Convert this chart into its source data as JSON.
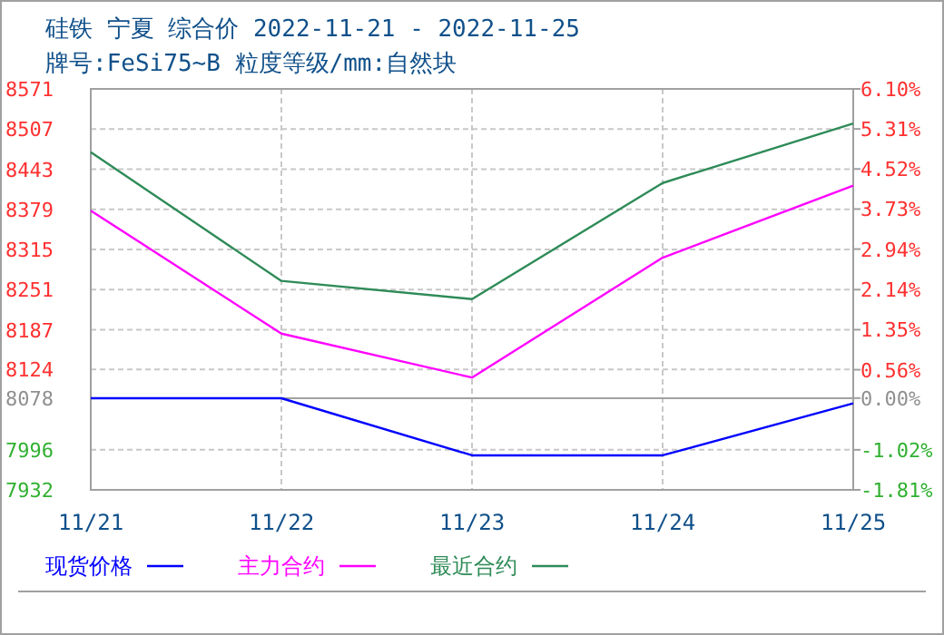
{
  "chart_data": {
    "type": "line",
    "title": "硅铁 宁夏 综合价 2022-11-21 - 2022-11-25",
    "subtitle": "牌号:FeSi75~B 粒度等级/mm:自然块",
    "categories": [
      "11/21",
      "11/22",
      "11/23",
      "11/24",
      "11/25"
    ],
    "series": [
      {
        "name": "现货价格",
        "color": "#0000ff",
        "values": [
          8078,
          8078,
          7987,
          7987,
          8070
        ]
      },
      {
        "name": "主力合约",
        "color": "#ff00ff",
        "values": [
          8377,
          8181,
          8111,
          8302,
          8417
        ]
      },
      {
        "name": "最近合约",
        "color": "#2e8b57",
        "values": [
          8470,
          8265,
          8236,
          8421,
          8516
        ]
      }
    ],
    "ylim": [
      7932,
      8571
    ],
    "yticks": [
      7932,
      7996,
      8078,
      8124,
      8187,
      8251,
      8315,
      8379,
      8443,
      8507,
      8571
    ],
    "y2lim": [
      -1.81,
      6.1
    ],
    "y2ticks": [
      {
        "value": -1.81,
        "label": "-1.81%"
      },
      {
        "value": -1.02,
        "label": "-1.02%"
      },
      {
        "value": 0,
        "label": "0.00%"
      },
      {
        "value": 0.56,
        "label": "0.56%"
      },
      {
        "value": 1.35,
        "label": "1.35%"
      },
      {
        "value": 2.14,
        "label": "2.14%"
      },
      {
        "value": 2.94,
        "label": "2.94%"
      },
      {
        "value": 3.73,
        "label": "3.73%"
      },
      {
        "value": 4.52,
        "label": "4.52%"
      },
      {
        "value": 5.31,
        "label": "5.31%"
      },
      {
        "value": 6.1,
        "label": "6.10%"
      }
    ],
    "ref_lines": [
      {
        "axis": "y",
        "value": 8078,
        "color": "#a0a0a0"
      }
    ],
    "grid": true,
    "legend": "bottom left",
    "marker": "none",
    "line_style": "solid"
  }
}
